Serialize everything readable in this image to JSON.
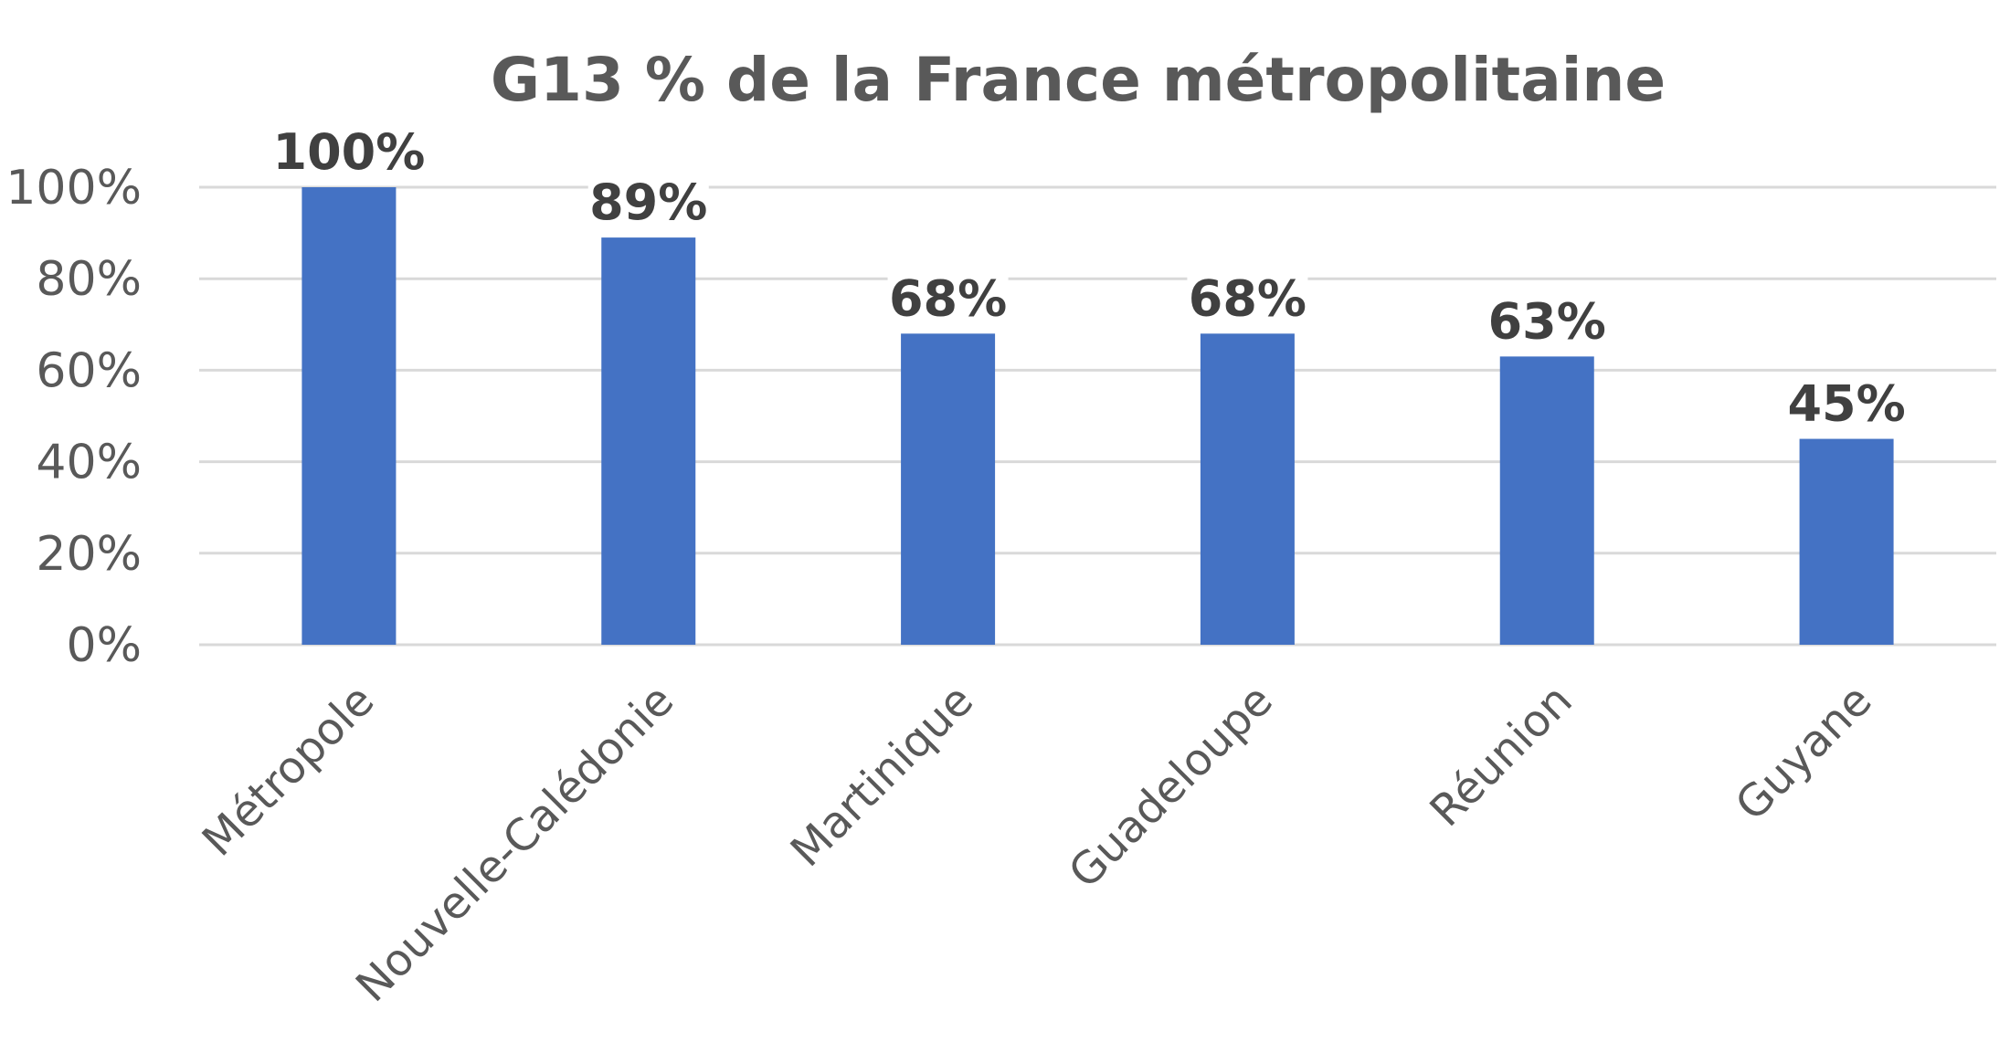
{
  "chart_data": {
    "type": "bar",
    "title": "G13   % de la France métropolitaine",
    "categories": [
      "Métropole",
      "Nouvelle-Calédonie",
      "Martinique",
      "Guadeloupe",
      "Réunion",
      "Guyane"
    ],
    "values": [
      100,
      89,
      68,
      68,
      63,
      45
    ],
    "data_labels": [
      "100%",
      "89%",
      "68%",
      "68%",
      "63%",
      "45%"
    ],
    "y_ticks": [
      0,
      20,
      40,
      60,
      80,
      100
    ],
    "y_tick_labels": [
      "0%",
      "20%",
      "40%",
      "60%",
      "80%",
      "100%"
    ],
    "ylim": [
      0,
      100
    ],
    "xlabel": "",
    "ylabel": "",
    "grid": true,
    "legend": "none",
    "colors": {
      "bar": "#4472C4",
      "grid": "#D9D9D9",
      "axis_text": "#595959",
      "data_label_text": "#404040",
      "title_text": "#595959"
    }
  }
}
